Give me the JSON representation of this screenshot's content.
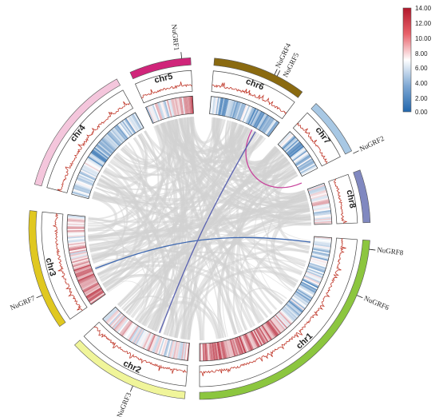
{
  "chromosomes": [
    {
      "name": "chr1",
      "color": "#8cc63f",
      "start": 94,
      "end": 180
    },
    {
      "name": "chr2",
      "color": "#f0f59a",
      "start": 185,
      "end": 227
    },
    {
      "name": "chr3",
      "color": "#e0c820",
      "start": 235,
      "end": 276
    },
    {
      "name": "chr4",
      "color": "#f4c6dc",
      "start": 285,
      "end": 331
    },
    {
      "name": "chr5",
      "color": "#d0257a",
      "start": 336,
      "end": 357
    },
    {
      "name": "chr6",
      "color": "#8a6a10",
      "start": 5,
      "end": 37
    },
    {
      "name": "chr7",
      "color": "#a8c8e4",
      "start": 43,
      "end": 63
    },
    {
      "name": "chr8",
      "color": "#8088c0",
      "start": 70,
      "end": 88
    }
  ],
  "genes": [
    {
      "name": "NuGRF1",
      "angle": 354,
      "dx": -6,
      "dy": 0
    },
    {
      "name": "NuGRF4",
      "angle": 26,
      "dx": 0,
      "dy": 0
    },
    {
      "name": "NuGRF5",
      "angle": 27,
      "dx": 6,
      "dy": 10
    },
    {
      "name": "NuGRF2",
      "angle": 64,
      "dx": 0,
      "dy": 0
    },
    {
      "name": "NuGRF8",
      "angle": 97,
      "dx": 0,
      "dy": 0
    },
    {
      "name": "NuGRF6",
      "angle": 113,
      "dx": 0,
      "dy": 0
    },
    {
      "name": "NuGRF3",
      "angle": 203,
      "dx": 0,
      "dy": 0
    },
    {
      "name": "NuGRF7",
      "angle": 247,
      "dx": 0,
      "dy": 0
    }
  ],
  "highlight_links": [
    {
      "from": 66,
      "to": 28,
      "color": "#c8449c"
    },
    {
      "from": 97,
      "to": 249,
      "color": "#3e68b0"
    },
    {
      "from": 30,
      "to": 201,
      "color": "#5a62b0"
    }
  ],
  "legend": {
    "ticks": [
      "14.00",
      "12.00",
      "10.00",
      "8.00",
      "6.00",
      "4.00",
      "2.00",
      "0.00"
    ],
    "colors": {
      "high": "#b2182b",
      "mid": "#ffffff",
      "low": "#2166ac"
    }
  }
}
